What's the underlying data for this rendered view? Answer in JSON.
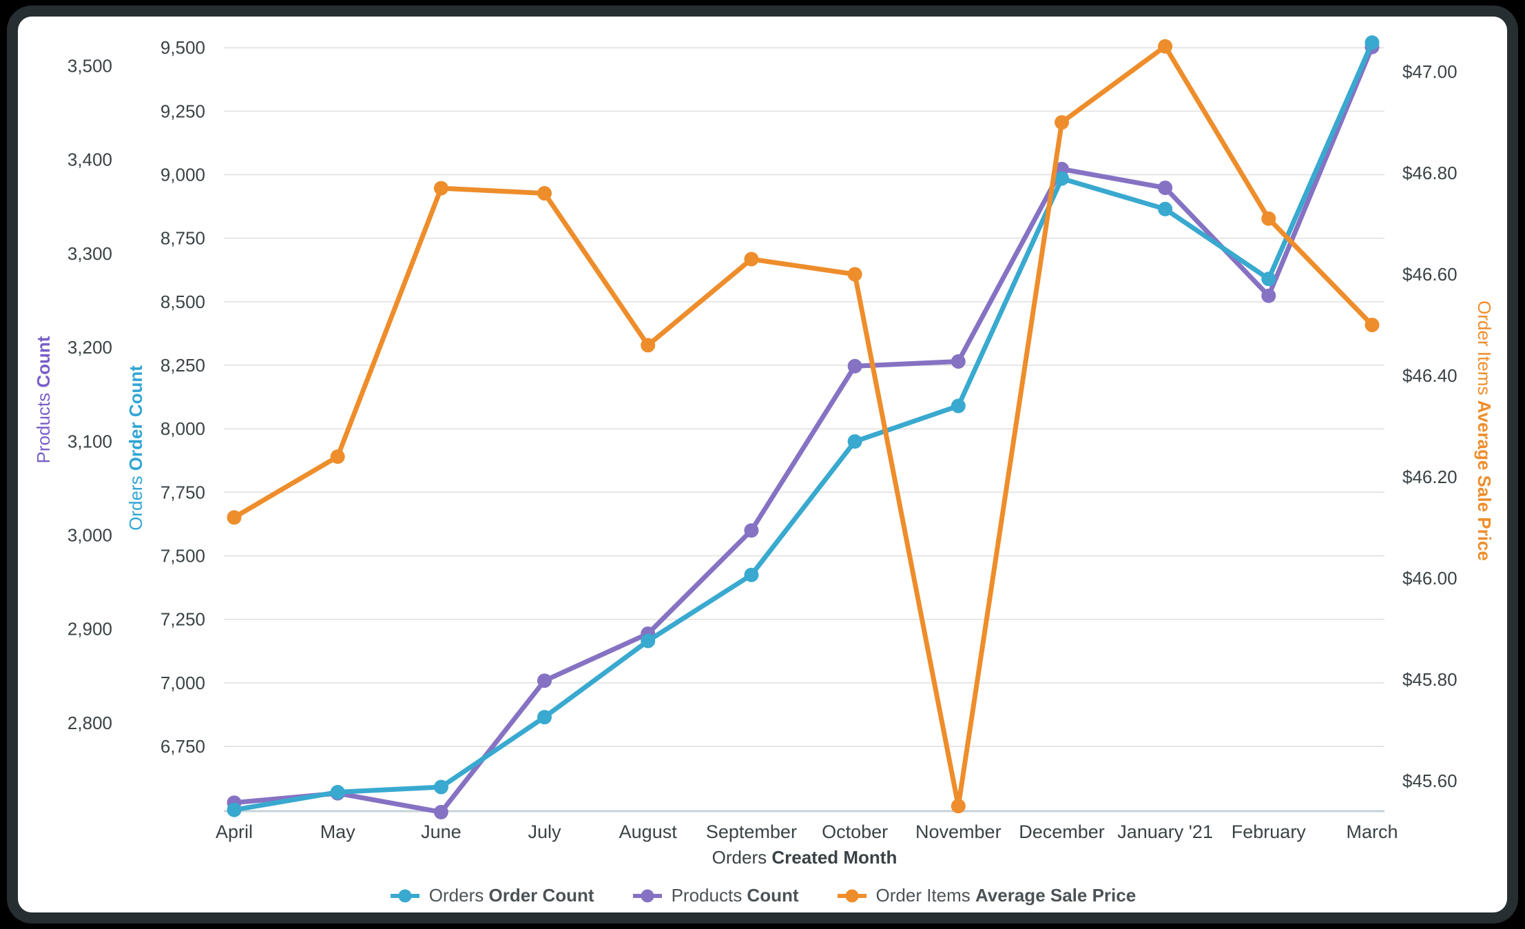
{
  "colors": {
    "grid": "#e6e6e6",
    "baseline": "#c7d2da",
    "tick_text": "#3a4245",
    "legend_text": "#4c5255",
    "card_background": "#ffffff",
    "bezel": "#272e32",
    "page_background": "#000000"
  },
  "chart_data": {
    "type": "line",
    "grid": "horizontal",
    "legend_position": "bottom",
    "categories": [
      "April",
      "May",
      "June",
      "July",
      "August",
      "September",
      "October",
      "November",
      "December",
      "January '21",
      "February",
      "March"
    ],
    "series": [
      {
        "name": "Orders Order Count",
        "label_regular": "Orders",
        "label_bold": "Order Count",
        "color": "#39a9cf",
        "axis": "orders",
        "values": [
          6500,
          6570,
          6590,
          6865,
          7165,
          7425,
          7950,
          8090,
          8985,
          8865,
          8590,
          9520
        ]
      },
      {
        "name": "Products Count",
        "label_regular": "Products",
        "label_bold": "Count",
        "color": "#8672c3",
        "axis": "products",
        "values": [
          2715,
          2725,
          2705,
          2845,
          2895,
          3005,
          3180,
          3185,
          3390,
          3370,
          3255,
          3520
        ]
      },
      {
        "name": "Order Items Average Sale Price",
        "label_regular": "Order Items",
        "label_bold": "Average Sale Price",
        "color": "#ee8d2b",
        "axis": "price",
        "values": [
          46.12,
          46.24,
          46.77,
          46.76,
          46.46,
          46.63,
          46.6,
          45.55,
          46.9,
          47.05,
          46.71,
          46.5
        ]
      }
    ],
    "y_axes": [
      {
        "id": "products",
        "side": "left-outer",
        "title_regular": "Products",
        "title_bold": "Count",
        "title_color": "#7a5fc7",
        "min": 2706,
        "max": 3526,
        "tick_labels": [
          "3,500",
          "3,400",
          "3,300",
          "3,200",
          "3,100",
          "3,000",
          "2,900",
          "2,800"
        ],
        "tick_values": [
          3500,
          3400,
          3300,
          3200,
          3100,
          3000,
          2900,
          2800
        ],
        "gridlines": false
      },
      {
        "id": "orders",
        "side": "left-inner",
        "title_regular": "Orders",
        "title_bold": "Order Count",
        "title_color": "#31a5d4",
        "min": 6495,
        "max": 9525,
        "tick_labels": [
          "9,500",
          "9,250",
          "9,000",
          "8,750",
          "8,500",
          "8,250",
          "8,000",
          "7,750",
          "7,500",
          "7,250",
          "7,000",
          "6,750"
        ],
        "tick_values": [
          9500,
          9250,
          9000,
          8750,
          8500,
          8250,
          8000,
          7750,
          7500,
          7250,
          7000,
          6750
        ],
        "gridlines": true
      },
      {
        "id": "price",
        "side": "right",
        "title_regular": "Order Items",
        "title_bold": "Average Sale Price",
        "title_color": "#ee8d2b",
        "min": 45.54,
        "max": 47.06,
        "tick_labels": [
          "$47.00",
          "$46.80",
          "$46.60",
          "$46.40",
          "$46.20",
          "$46.00",
          "$45.80",
          "$45.60"
        ],
        "tick_values": [
          47.0,
          46.8,
          46.6,
          46.4,
          46.2,
          46.0,
          45.8,
          45.6
        ],
        "gridlines": false
      }
    ],
    "x_axis": {
      "title_regular": "Orders",
      "title_bold": "Created Month",
      "labels": [
        "April",
        "May",
        "June",
        "July",
        "August",
        "September",
        "October",
        "November",
        "December",
        "January '21",
        "February",
        "March"
      ]
    }
  }
}
